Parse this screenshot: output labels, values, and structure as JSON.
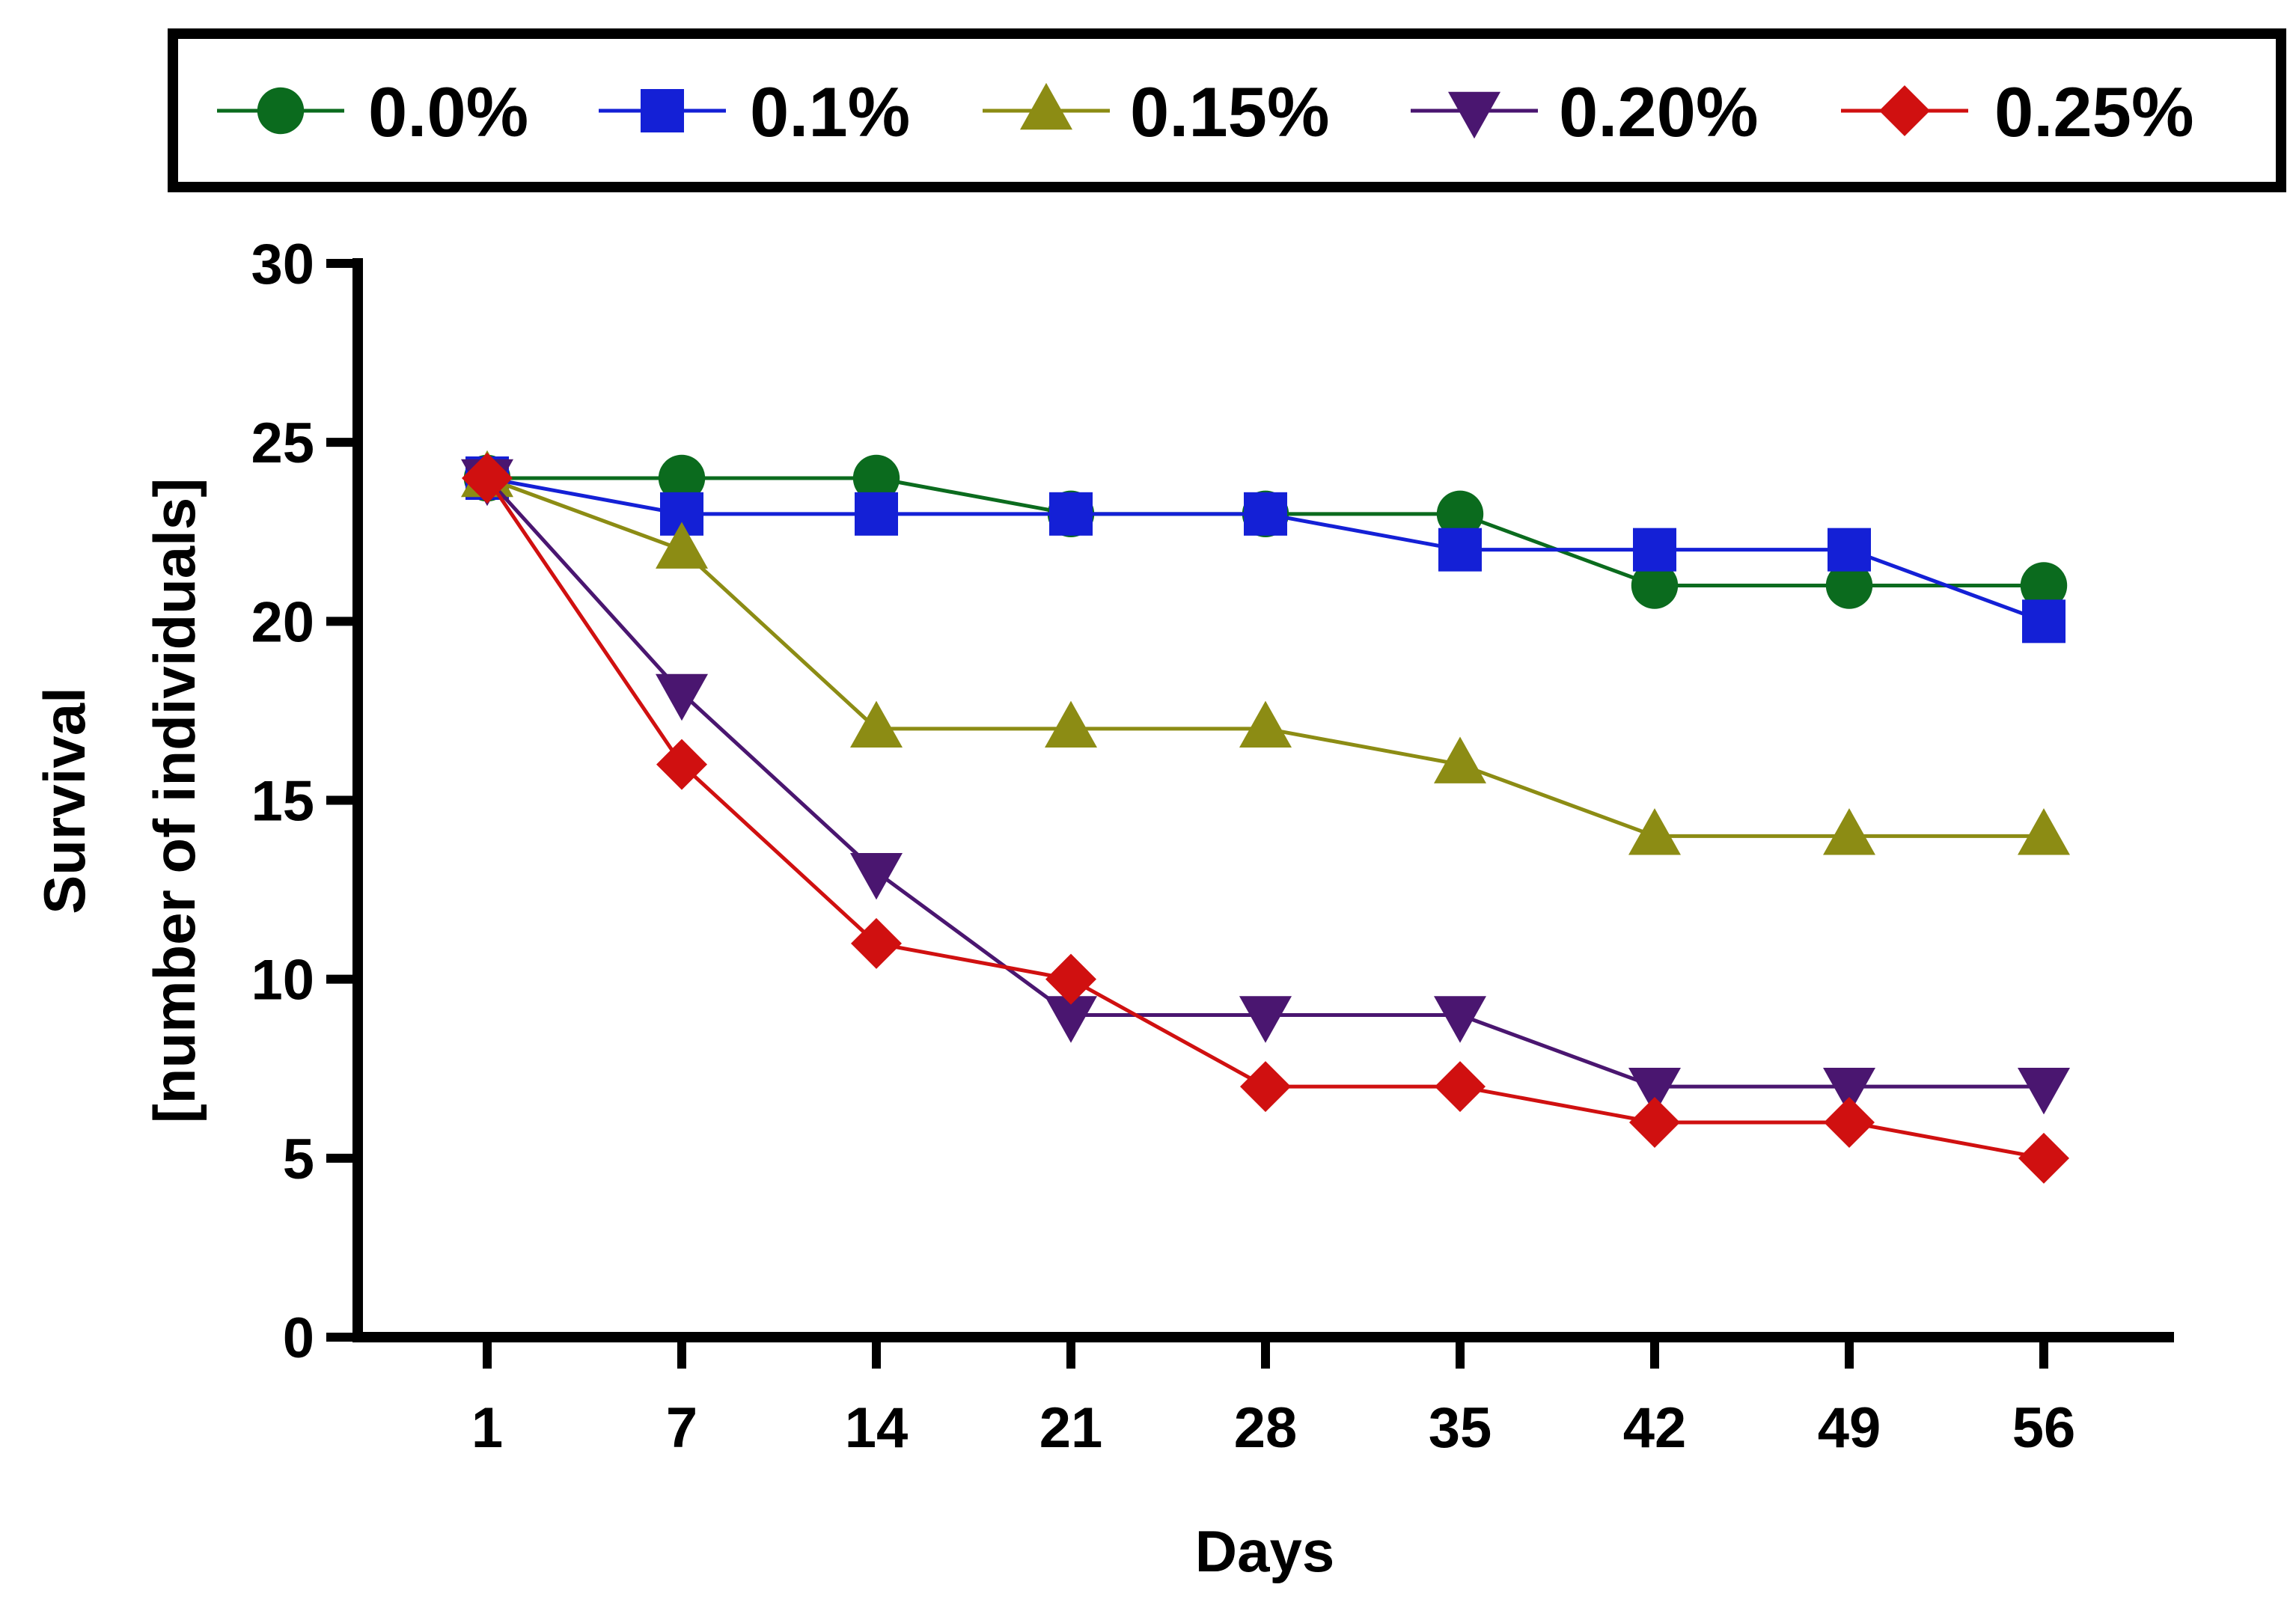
{
  "chart_data": {
    "type": "line",
    "xlabel": "Days",
    "ylabel_lines": [
      "Survival",
      "[number of individuals]"
    ],
    "categories": [
      "1",
      "7",
      "14",
      "21",
      "28",
      "35",
      "42",
      "49",
      "56"
    ],
    "yticks": [
      "0",
      "5",
      "10",
      "15",
      "20",
      "25",
      "30"
    ],
    "ylim": [
      0,
      30
    ],
    "grid": false,
    "legend_position": "top",
    "series": [
      {
        "name": "0.0%",
        "color": "#0b6b1e",
        "marker": "circle",
        "values": [
          24,
          24,
          24,
          23,
          23,
          23,
          21,
          21,
          21
        ]
      },
      {
        "name": "0.1%",
        "color": "#1420d6",
        "marker": "square",
        "values": [
          24,
          23,
          23,
          23,
          23,
          22,
          22,
          22,
          20
        ]
      },
      {
        "name": "0.15%",
        "color": "#8c8c14",
        "marker": "triangle-up",
        "values": [
          24,
          22,
          17,
          17,
          17,
          16,
          14,
          14,
          14
        ]
      },
      {
        "name": "0.20%",
        "color": "#4a1670",
        "marker": "triangle-down",
        "values": [
          24,
          18,
          13,
          9,
          9,
          9,
          7,
          7,
          7
        ]
      },
      {
        "name": "0.25%",
        "color": "#d01010",
        "marker": "diamond",
        "values": [
          24,
          16,
          11,
          10,
          7,
          7,
          6,
          6,
          5
        ]
      }
    ]
  }
}
